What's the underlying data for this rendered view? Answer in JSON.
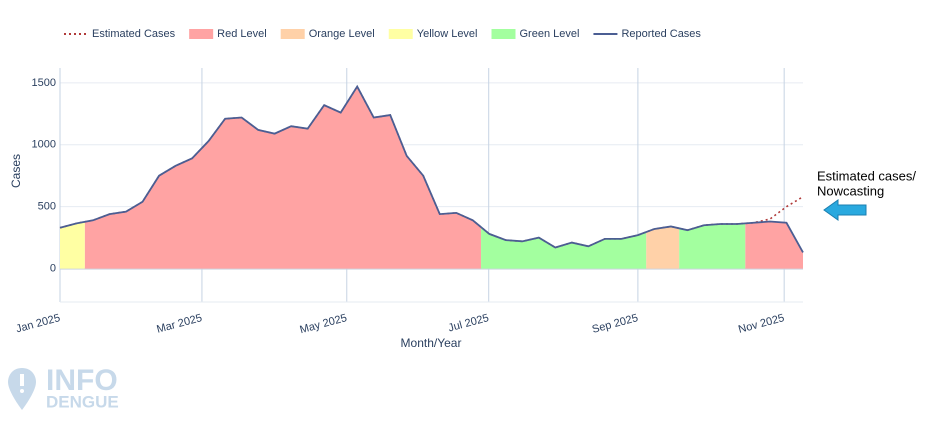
{
  "chart_data": {
    "type": "line",
    "x_label": "Month/Year",
    "y_label": "Cases",
    "x": [
      0,
      0.228,
      0.456,
      0.684,
      0.912,
      1.14,
      1.368,
      1.596,
      1.824,
      2.052,
      2.28,
      2.508,
      2.736,
      2.964,
      3.192,
      3.42,
      3.648,
      3.876,
      4.104,
      4.332,
      4.56,
      4.788,
      5.016,
      5.244,
      5.472,
      5.7,
      5.928,
      6.156,
      6.384,
      6.612,
      6.84,
      7.068,
      7.296,
      7.524,
      7.752,
      7.98,
      8.208,
      8.436,
      8.664,
      8.892,
      9.12,
      9.348,
      9.576,
      9.804,
      10.032,
      10.26
    ],
    "xlim": [
      0,
      10.26
    ],
    "xticks": [
      {
        "value": 0,
        "label": "Jan 2025"
      },
      {
        "value": 1.96,
        "label": "Mar 2025"
      },
      {
        "value": 3.96,
        "label": "May 2025"
      },
      {
        "value": 5.92,
        "label": "Jul 2025"
      },
      {
        "value": 7.98,
        "label": "Sep 2025"
      },
      {
        "value": 10.0,
        "label": "Nov 2025"
      }
    ],
    "ylim": [
      -270,
      1620
    ],
    "yticks": [
      0,
      500,
      1000,
      1500
    ],
    "grid": true,
    "legend": "top",
    "series": [
      {
        "name": "Estimated Cases",
        "kind": "line",
        "dash": "dot",
        "color": "#b03a3a",
        "values": [
          330,
          365,
          390,
          440,
          460,
          540,
          750,
          830,
          890,
          1030,
          1210,
          1220,
          1120,
          1090,
          1150,
          1130,
          1320,
          1260,
          1470,
          1220,
          1240,
          910,
          750,
          440,
          450,
          390,
          280,
          230,
          220,
          250,
          170,
          210,
          180,
          240,
          240,
          270,
          320,
          340,
          310,
          350,
          360,
          360,
          370,
          400,
          500,
          580
        ]
      },
      {
        "name": "Red Level",
        "kind": "area",
        "color": "#ffa3a3",
        "values": [
          null,
          null,
          390,
          440,
          460,
          540,
          750,
          830,
          890,
          1030,
          1210,
          1220,
          1120,
          1090,
          1150,
          1130,
          1320,
          1260,
          1470,
          1220,
          1240,
          910,
          750,
          440,
          450,
          390,
          null,
          null,
          null,
          null,
          null,
          null,
          null,
          null,
          null,
          null,
          null,
          null,
          null,
          null,
          null,
          null,
          370,
          380,
          370,
          130
        ]
      },
      {
        "name": "Orange Level",
        "kind": "area",
        "color": "#ffd1a8",
        "values": [
          null,
          null,
          null,
          null,
          null,
          null,
          null,
          null,
          null,
          null,
          null,
          null,
          null,
          null,
          null,
          null,
          null,
          null,
          null,
          null,
          null,
          null,
          null,
          null,
          null,
          null,
          null,
          null,
          null,
          null,
          null,
          null,
          null,
          null,
          null,
          null,
          320,
          340,
          null,
          null,
          null,
          null,
          null,
          null,
          null,
          null
        ]
      },
      {
        "name": "Yellow Level",
        "kind": "area",
        "color": "#ffffa3",
        "values": [
          330,
          365,
          null,
          null,
          null,
          null,
          null,
          null,
          null,
          null,
          null,
          null,
          null,
          null,
          null,
          null,
          null,
          null,
          null,
          null,
          null,
          null,
          null,
          null,
          null,
          null,
          null,
          null,
          null,
          null,
          null,
          null,
          null,
          null,
          null,
          null,
          null,
          null,
          null,
          null,
          null,
          null,
          null,
          null,
          null,
          null
        ]
      },
      {
        "name": "Green Level",
        "kind": "area",
        "color": "#a3ff9f",
        "values": [
          null,
          null,
          null,
          null,
          null,
          null,
          null,
          null,
          null,
          null,
          null,
          null,
          null,
          null,
          null,
          null,
          null,
          null,
          null,
          null,
          null,
          null,
          null,
          null,
          null,
          null,
          280,
          230,
          220,
          250,
          170,
          210,
          180,
          240,
          240,
          270,
          null,
          null,
          310,
          350,
          360,
          360,
          null,
          null,
          null,
          null
        ]
      },
      {
        "name": "Reported Cases",
        "kind": "line",
        "dash": "solid",
        "color": "#4b5e93",
        "values": [
          330,
          365,
          390,
          440,
          460,
          540,
          750,
          830,
          890,
          1030,
          1210,
          1220,
          1120,
          1090,
          1150,
          1130,
          1320,
          1260,
          1470,
          1220,
          1240,
          910,
          750,
          440,
          450,
          390,
          280,
          230,
          220,
          250,
          170,
          210,
          180,
          240,
          240,
          270,
          320,
          340,
          310,
          350,
          360,
          360,
          370,
          380,
          370,
          130
        ]
      }
    ],
    "annotation": {
      "line1": "Estimated cases/",
      "line2": "Nowcasting"
    }
  },
  "logo": {
    "line1": "INFO",
    "line2": "DENGUE"
  }
}
